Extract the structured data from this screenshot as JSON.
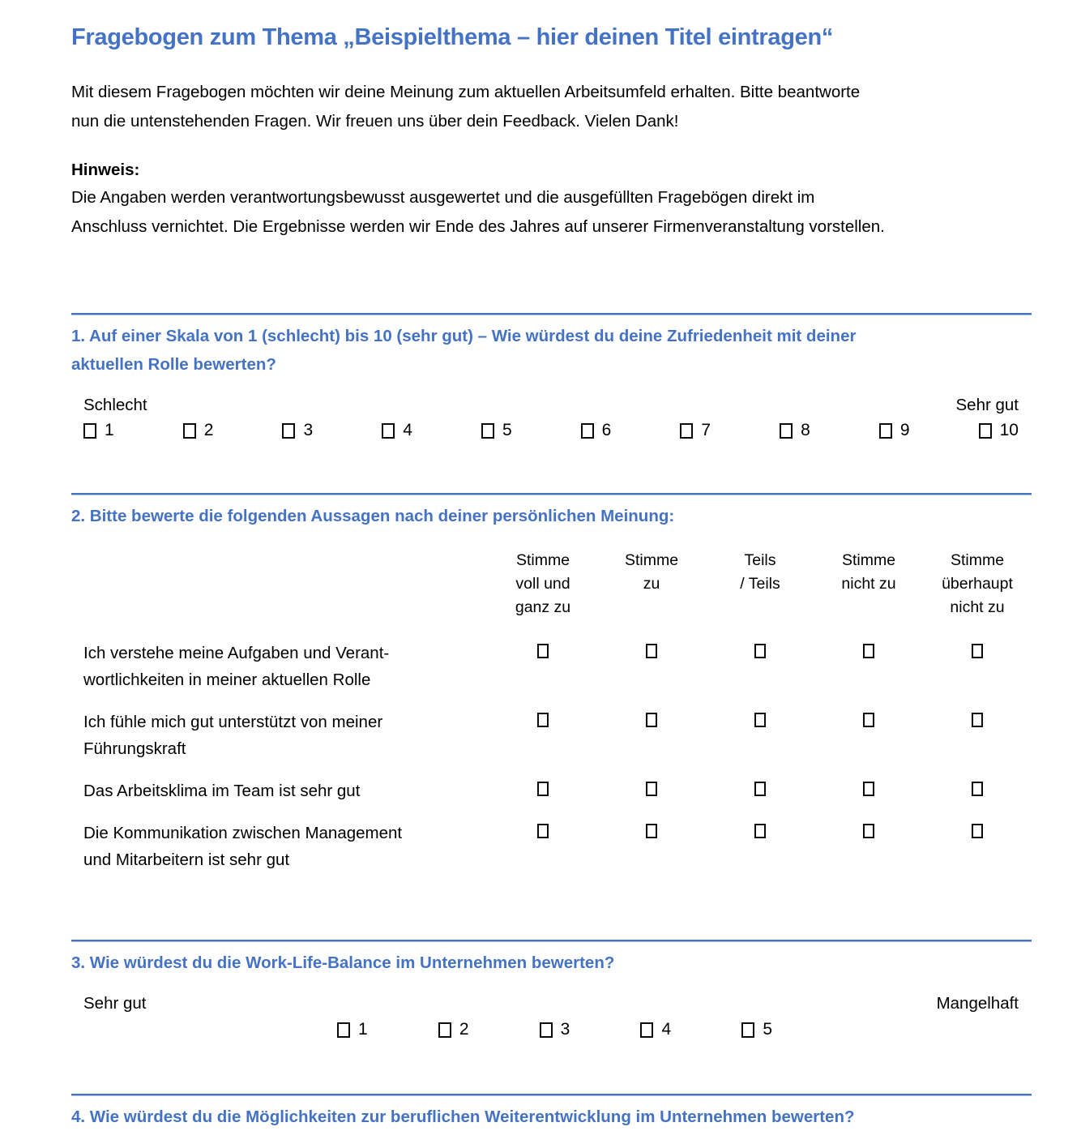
{
  "colors": {
    "accent": "#4472C4",
    "rule-light": "#A7BAE0",
    "text": "#000000"
  },
  "doc": {
    "title": "Fragebogen zum Thema „Beispielthema – hier deinen Titel eintragen“",
    "intro": "Mit diesem Fragebogen möchten wir deine Meinung zum aktuellen Arbeitsumfeld erhalten. Bitte beantworte\nnun die untenstehenden Fragen. Wir freuen uns über dein Feedback. Vielen Dank!",
    "note_label": "Hinweis:",
    "note_text": "Die Angaben werden verantwortungsbewusst ausgewertet und die ausgefüllten Fragebögen direkt im\nAnschluss vernichtet. Die Ergebnisse werden wir Ende des Jahres auf unserer Firmenveranstaltung vorstellen."
  },
  "q1": {
    "heading": "1. Auf einer Skala von 1 (schlecht) bis 10 (sehr gut) – Wie würdest du deine Zufriedenheit mit deiner\naktuellen Rolle bewerten?",
    "left_label": "Schlecht",
    "right_label": "Sehr gut",
    "options": [
      "1",
      "2",
      "3",
      "4",
      "5",
      "6",
      "7",
      "8",
      "9",
      "10"
    ]
  },
  "q2": {
    "heading": "2. Bitte bewerte die folgenden Aussagen nach deiner persönlichen Meinung:",
    "columns": [
      "Stimme\nvoll und\nganz zu",
      "Stimme\nzu",
      "Teils\n/ Teils",
      "Stimme\nnicht zu",
      "Stimme\nüberhaupt\nnicht zu"
    ],
    "statements": [
      "Ich verstehe meine Aufgaben und Verant-\nwortlichkeiten in meiner aktuellen Rolle",
      "Ich fühle mich gut unterstützt von meiner\nFührungskraft",
      "Das Arbeitsklima im Team ist sehr gut",
      "Die Kommunikation zwischen Management\nund Mitarbeitern ist sehr gut"
    ]
  },
  "q3": {
    "heading": "3. Wie würdest du die Work-Life-Balance im Unternehmen bewerten?",
    "left_label": "Sehr gut",
    "right_label": "Mangelhaft",
    "options": [
      "1",
      "2",
      "3",
      "4",
      "5"
    ]
  },
  "q4": {
    "heading": "4. Wie würdest du die Möglichkeiten zur beruflichen Weiterentwicklung im Unternehmen bewerten?"
  }
}
